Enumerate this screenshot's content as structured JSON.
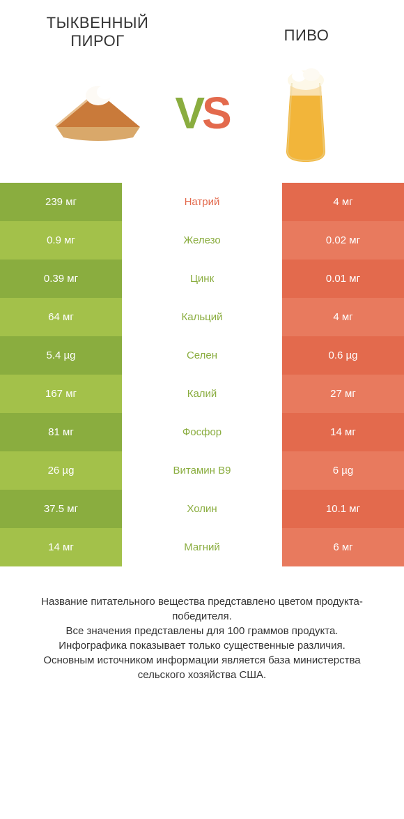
{
  "header": {
    "left_title": "ТЫКВЕННЫЙ ПИРОГ",
    "right_title": "ПИВО",
    "vs_v": "V",
    "vs_s": "S"
  },
  "colors": {
    "green_dark": "#8aad3f",
    "green_light": "#a3c14a",
    "orange_dark": "#e36a4d",
    "orange_light": "#e87a5e",
    "label_green": "#8aad3f",
    "label_orange": "#e36a4d",
    "text_dark": "#333333",
    "background": "#ffffff"
  },
  "rows": [
    {
      "left": "239 мг",
      "label": "Натрий",
      "right": "4 мг",
      "winner": "right"
    },
    {
      "left": "0.9 мг",
      "label": "Железо",
      "right": "0.02 мг",
      "winner": "left"
    },
    {
      "left": "0.39 мг",
      "label": "Цинк",
      "right": "0.01 мг",
      "winner": "left"
    },
    {
      "left": "64 мг",
      "label": "Кальций",
      "right": "4 мг",
      "winner": "left"
    },
    {
      "left": "5.4 µg",
      "label": "Селен",
      "right": "0.6 µg",
      "winner": "left"
    },
    {
      "left": "167 мг",
      "label": "Калий",
      "right": "27 мг",
      "winner": "left"
    },
    {
      "left": "81 мг",
      "label": "Фосфор",
      "right": "14 мг",
      "winner": "left"
    },
    {
      "left": "26 µg",
      "label": "Витамин B9",
      "right": "6 µg",
      "winner": "left"
    },
    {
      "left": "37.5 мг",
      "label": "Холин",
      "right": "10.1 мг",
      "winner": "left"
    },
    {
      "left": "14 мг",
      "label": "Магний",
      "right": "6 мг",
      "winner": "left"
    }
  ],
  "footer": {
    "line1": "Название питательного вещества представлено цветом продукта-победителя.",
    "line2": "Все значения представлены для 100 граммов продукта.",
    "line3": "Инфографика показывает только существенные различия.",
    "line4": "Основным источником информации является база министерства сельского хозяйства США."
  }
}
